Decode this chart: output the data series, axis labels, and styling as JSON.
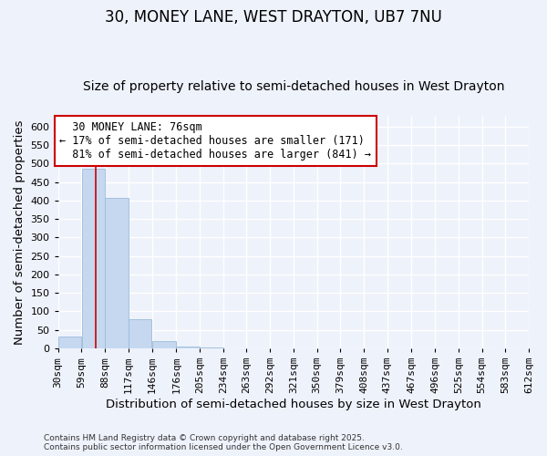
{
  "title": "30, MONEY LANE, WEST DRAYTON, UB7 7NU",
  "subtitle": "Size of property relative to semi-detached houses in West Drayton",
  "xlabel": "Distribution of semi-detached houses by size in West Drayton",
  "ylabel": "Number of semi-detached properties",
  "footer": "Contains HM Land Registry data © Crown copyright and database right 2025.\nContains public sector information licensed under the Open Government Licence v3.0.",
  "annotation_title": "30 MONEY LANE: 76sqm",
  "annotation_line1": "← 17% of semi-detached houses are smaller (171)",
  "annotation_line2": "81% of semi-detached houses are larger (841) →",
  "property_size_sqm": 76,
  "bin_edges": [
    30,
    59,
    88,
    117,
    146,
    176,
    205,
    234,
    263,
    292,
    321,
    350,
    379,
    408,
    437,
    467,
    496,
    525,
    554,
    583,
    612
  ],
  "bin_labels": [
    "30sqm",
    "59sqm",
    "88sqm",
    "117sqm",
    "146sqm",
    "176sqm",
    "205sqm",
    "234sqm",
    "263sqm",
    "292sqm",
    "321sqm",
    "350sqm",
    "379sqm",
    "408sqm",
    "437sqm",
    "467sqm",
    "496sqm",
    "525sqm",
    "554sqm",
    "583sqm",
    "612sqm"
  ],
  "bar_heights": [
    32,
    487,
    408,
    80,
    20,
    5,
    2,
    1,
    0,
    0,
    0,
    0,
    0,
    0,
    0,
    0,
    0,
    0,
    0,
    0
  ],
  "bar_color": "#c5d8f0",
  "bar_edge_color": "#9bbcda",
  "marker_color": "#cc0000",
  "ylim": [
    0,
    630
  ],
  "yticks": [
    0,
    50,
    100,
    150,
    200,
    250,
    300,
    350,
    400,
    450,
    500,
    550,
    600
  ],
  "background_color": "#eef2fb",
  "grid_color": "#ffffff",
  "annotation_box_color": "#ffffff",
  "annotation_box_edge": "#cc0000",
  "title_fontsize": 12,
  "subtitle_fontsize": 10,
  "axis_label_fontsize": 9.5,
  "tick_fontsize": 8,
  "annotation_fontsize": 8.5,
  "footer_fontsize": 6.5
}
